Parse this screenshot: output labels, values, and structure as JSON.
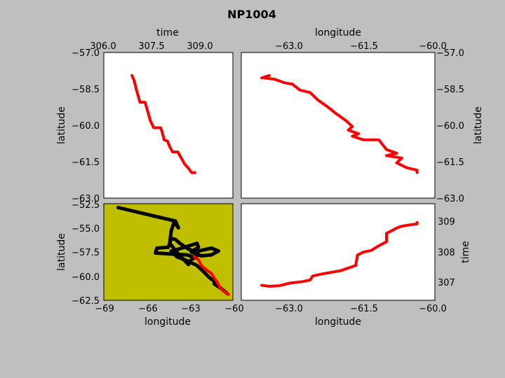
{
  "chart_data": {
    "type": "multi-panel",
    "title": "NP1004",
    "panels": [
      {
        "id": "time_vs_latitude",
        "type": "line",
        "xlabel": "time",
        "ylabel": "latitude",
        "xlim": [
          306.0,
          309.75
        ],
        "ylim": [
          -63.0,
          -57.0
        ],
        "xticks": [
          "306.0",
          "307.5",
          "309.0"
        ],
        "yticks": [
          "-57.0",
          "-58.5",
          "-60.0",
          "-61.5",
          "-63.0"
        ],
        "background": "#ffffff",
        "series": [
          {
            "color": "#ff0000",
            "points": [
              [
                306.82,
                -57.95
              ],
              [
                306.88,
                -58.15
              ],
              [
                306.95,
                -58.55
              ],
              [
                307.0,
                -58.8
              ],
              [
                307.05,
                -59.05
              ],
              [
                307.2,
                -59.05
              ],
              [
                307.25,
                -59.3
              ],
              [
                307.35,
                -59.8
              ],
              [
                307.45,
                -60.1
              ],
              [
                307.65,
                -60.1
              ],
              [
                307.7,
                -60.3
              ],
              [
                307.75,
                -60.6
              ],
              [
                307.85,
                -60.65
              ],
              [
                307.92,
                -60.9
              ],
              [
                308.0,
                -61.1
              ],
              [
                308.15,
                -61.1
              ],
              [
                308.25,
                -61.35
              ],
              [
                308.35,
                -61.6
              ],
              [
                308.45,
                -61.75
              ],
              [
                308.55,
                -61.95
              ],
              [
                308.65,
                -61.95
              ]
            ]
          }
        ]
      },
      {
        "id": "longitude_vs_latitude",
        "type": "line",
        "xlabel": "longitude",
        "ylabel": "latitude",
        "xlim": [
          -63.8,
          -60.0
        ],
        "ylim": [
          -63.0,
          -57.0
        ],
        "xticks": [
          "-63.0",
          "-61.5",
          "-60.0"
        ],
        "yticks": [
          "-57.0",
          "-58.5",
          "-60.0",
          "-61.5",
          "-63.0"
        ],
        "background": "#ffffff",
        "series": [
          {
            "color": "#ff0000",
            "points": [
              [
                -63.4,
                -58.05
              ],
              [
                -63.25,
                -57.95
              ],
              [
                -63.35,
                -58.05
              ],
              [
                -63.15,
                -58.1
              ],
              [
                -62.95,
                -58.25
              ],
              [
                -62.8,
                -58.3
              ],
              [
                -62.65,
                -58.55
              ],
              [
                -62.45,
                -58.65
              ],
              [
                -62.3,
                -58.95
              ],
              [
                -62.1,
                -59.25
              ],
              [
                -61.95,
                -59.5
              ],
              [
                -61.75,
                -59.8
              ],
              [
                -61.62,
                -60.05
              ],
              [
                -61.7,
                -60.2
              ],
              [
                -61.5,
                -60.35
              ],
              [
                -61.62,
                -60.45
              ],
              [
                -61.4,
                -60.6
              ],
              [
                -61.1,
                -60.6
              ],
              [
                -60.95,
                -61.0
              ],
              [
                -60.75,
                -61.15
              ],
              [
                -60.95,
                -61.25
              ],
              [
                -60.65,
                -61.35
              ],
              [
                -60.75,
                -61.55
              ],
              [
                -60.55,
                -61.75
              ],
              [
                -60.35,
                -61.85
              ],
              [
                -60.35,
                -61.95
              ]
            ]
          }
        ]
      },
      {
        "id": "longitude_vs_latitude_overview",
        "type": "line",
        "xlabel": "longitude",
        "ylabel": "latitude",
        "xlim": [
          -69.0,
          -60.0
        ],
        "ylim": [
          -62.5,
          -52.5
        ],
        "xticks": [
          "-69",
          "-66",
          "-63",
          "-60"
        ],
        "yticks": [
          "-52.5",
          "-55.0",
          "-57.5",
          "-60.0",
          "-62.5"
        ],
        "background": "#bfbf00",
        "series": [
          {
            "color": "#000000",
            "points": [
              [
                -68.0,
                -52.9
              ],
              [
                -66.0,
                -53.6
              ],
              [
                -64.0,
                -54.3
              ],
              [
                -63.8,
                -55.0
              ],
              [
                -64.1,
                -54.4
              ],
              [
                -64.3,
                -55.3
              ],
              [
                -64.4,
                -56.6
              ],
              [
                -63.8,
                -57.7
              ],
              [
                -63.1,
                -58.8
              ],
              [
                -62.9,
                -58.3
              ],
              [
                -62.5,
                -57.9
              ],
              [
                -62.7,
                -57.4
              ],
              [
                -63.1,
                -57.2
              ],
              [
                -63.7,
                -56.6
              ],
              [
                -64.0,
                -56.2
              ],
              [
                -64.3,
                -56.1
              ],
              [
                -64.5,
                -57.0
              ],
              [
                -65.3,
                -57.1
              ],
              [
                -65.4,
                -57.6
              ],
              [
                -64.4,
                -57.7
              ],
              [
                -63.2,
                -57.8
              ],
              [
                -62.6,
                -58.1
              ],
              [
                -62.4,
                -57.4
              ],
              [
                -61.5,
                -57.1
              ],
              [
                -61.0,
                -57.4
              ],
              [
                -61.5,
                -57.8
              ],
              [
                -62.2,
                -57.9
              ],
              [
                -62.9,
                -57.5
              ],
              [
                -62.4,
                -57.0
              ],
              [
                -62.5,
                -56.6
              ],
              [
                -63.8,
                -57.2
              ],
              [
                -64.3,
                -57.4
              ],
              [
                -63.9,
                -58.0
              ],
              [
                -63.2,
                -58.4
              ],
              [
                -62.5,
                -58.9
              ],
              [
                -62.0,
                -59.6
              ],
              [
                -61.6,
                -60.2
              ],
              [
                -61.3,
                -60.5
              ],
              [
                -61.3,
                -60.8
              ],
              [
                -60.8,
                -61.3
              ],
              [
                -60.4,
                -61.8
              ]
            ]
          },
          {
            "color": "#ff0000",
            "points": [
              [
                -62.7,
                -58.0
              ],
              [
                -62.4,
                -58.3
              ],
              [
                -62.2,
                -58.9
              ],
              [
                -61.8,
                -59.4
              ],
              [
                -61.5,
                -59.7
              ],
              [
                -61.3,
                -60.2
              ],
              [
                -61.1,
                -60.6
              ],
              [
                -60.9,
                -61.2
              ],
              [
                -60.7,
                -61.5
              ],
              [
                -60.5,
                -61.7
              ],
              [
                -60.3,
                -61.9
              ]
            ]
          }
        ]
      },
      {
        "id": "longitude_vs_time",
        "type": "line",
        "xlabel": "longitude",
        "ylabel": "time",
        "xlim": [
          -63.8,
          -60.0
        ],
        "ylim": [
          306.5,
          309.6
        ],
        "xticks": [
          "-63.0",
          "-61.5",
          "-60.0"
        ],
        "yticks": [
          "307",
          "308",
          "309"
        ],
        "background": "#ffffff",
        "series": [
          {
            "color": "#ff0000",
            "points": [
              [
                -63.4,
                306.98
              ],
              [
                -63.25,
                306.95
              ],
              [
                -63.05,
                306.97
              ],
              [
                -62.85,
                307.05
              ],
              [
                -62.6,
                307.1
              ],
              [
                -62.45,
                307.15
              ],
              [
                -62.4,
                307.28
              ],
              [
                -62.2,
                307.35
              ],
              [
                -61.85,
                307.45
              ],
              [
                -61.55,
                307.62
              ],
              [
                -61.55,
                307.65
              ],
              [
                -61.52,
                307.95
              ],
              [
                -61.4,
                308.05
              ],
              [
                -61.25,
                308.1
              ],
              [
                -61.1,
                308.25
              ],
              [
                -60.95,
                308.38
              ],
              [
                -60.95,
                308.65
              ],
              [
                -60.85,
                308.73
              ],
              [
                -60.75,
                308.82
              ],
              [
                -60.65,
                308.88
              ],
              [
                -60.5,
                308.92
              ],
              [
                -60.35,
                308.95
              ],
              [
                -60.35,
                309.0
              ]
            ]
          }
        ]
      }
    ]
  }
}
